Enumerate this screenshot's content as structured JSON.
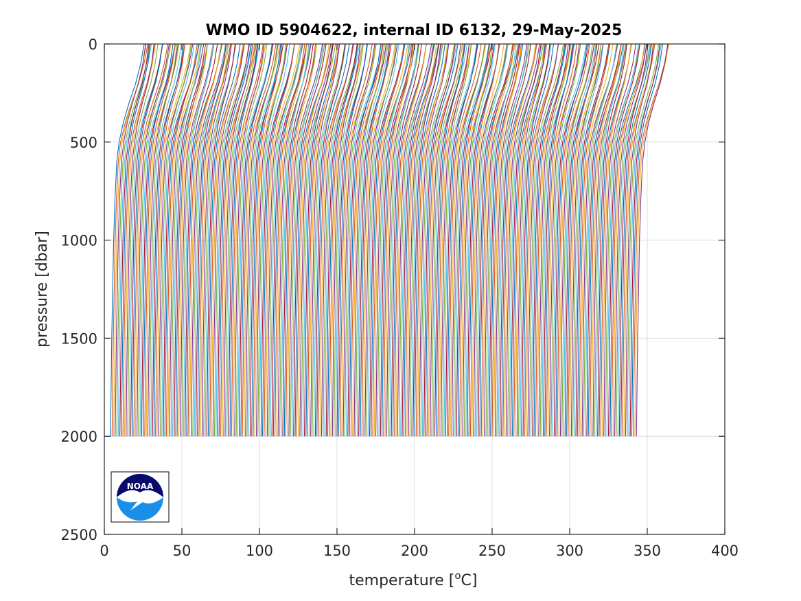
{
  "chart_data": {
    "type": "line",
    "title": "WMO ID 5904622, internal ID 6132, 29-May-2025",
    "xlabel_main": "temperature [",
    "xlabel_sup": "o",
    "xlabel_unit": "C]",
    "ylabel": "pressure [dbar]",
    "xlim": [
      0,
      400
    ],
    "ylim": [
      0,
      2500
    ],
    "y_reversed": true,
    "grid": true,
    "xticks": [
      0,
      50,
      100,
      150,
      200,
      250,
      300,
      350,
      400
    ],
    "yticks": [
      0,
      500,
      1000,
      1500,
      2000,
      2500
    ],
    "series_description": "waterfall of temperature profiles, each offset along the x axis",
    "profile_count": 340,
    "profile_offset_start": 4,
    "profile_offset_step": 1,
    "profile_shape": [
      {
        "pressure": 0,
        "temperature_rel": 20.5
      },
      {
        "pressure": 100,
        "temperature_rel": 18.5
      },
      {
        "pressure": 200,
        "temperature_rel": 15.5
      },
      {
        "pressure": 300,
        "temperature_rel": 11.5
      },
      {
        "pressure": 400,
        "temperature_rel": 8.0
      },
      {
        "pressure": 500,
        "temperature_rel": 5.5
      },
      {
        "pressure": 600,
        "temperature_rel": 4.0
      },
      {
        "pressure": 800,
        "temperature_rel": 2.8
      },
      {
        "pressure": 1000,
        "temperature_rel": 2.0
      },
      {
        "pressure": 1500,
        "temperature_rel": 0.8
      },
      {
        "pressure": 2000,
        "temperature_rel": 0.0
      }
    ],
    "colors": [
      "#0072BD",
      "#D95319",
      "#EDB120",
      "#7E2F8E",
      "#77AC30",
      "#4DBEEE",
      "#A2142F"
    ],
    "logo": {
      "name": "noaa-logo",
      "text": "NOAA"
    }
  }
}
